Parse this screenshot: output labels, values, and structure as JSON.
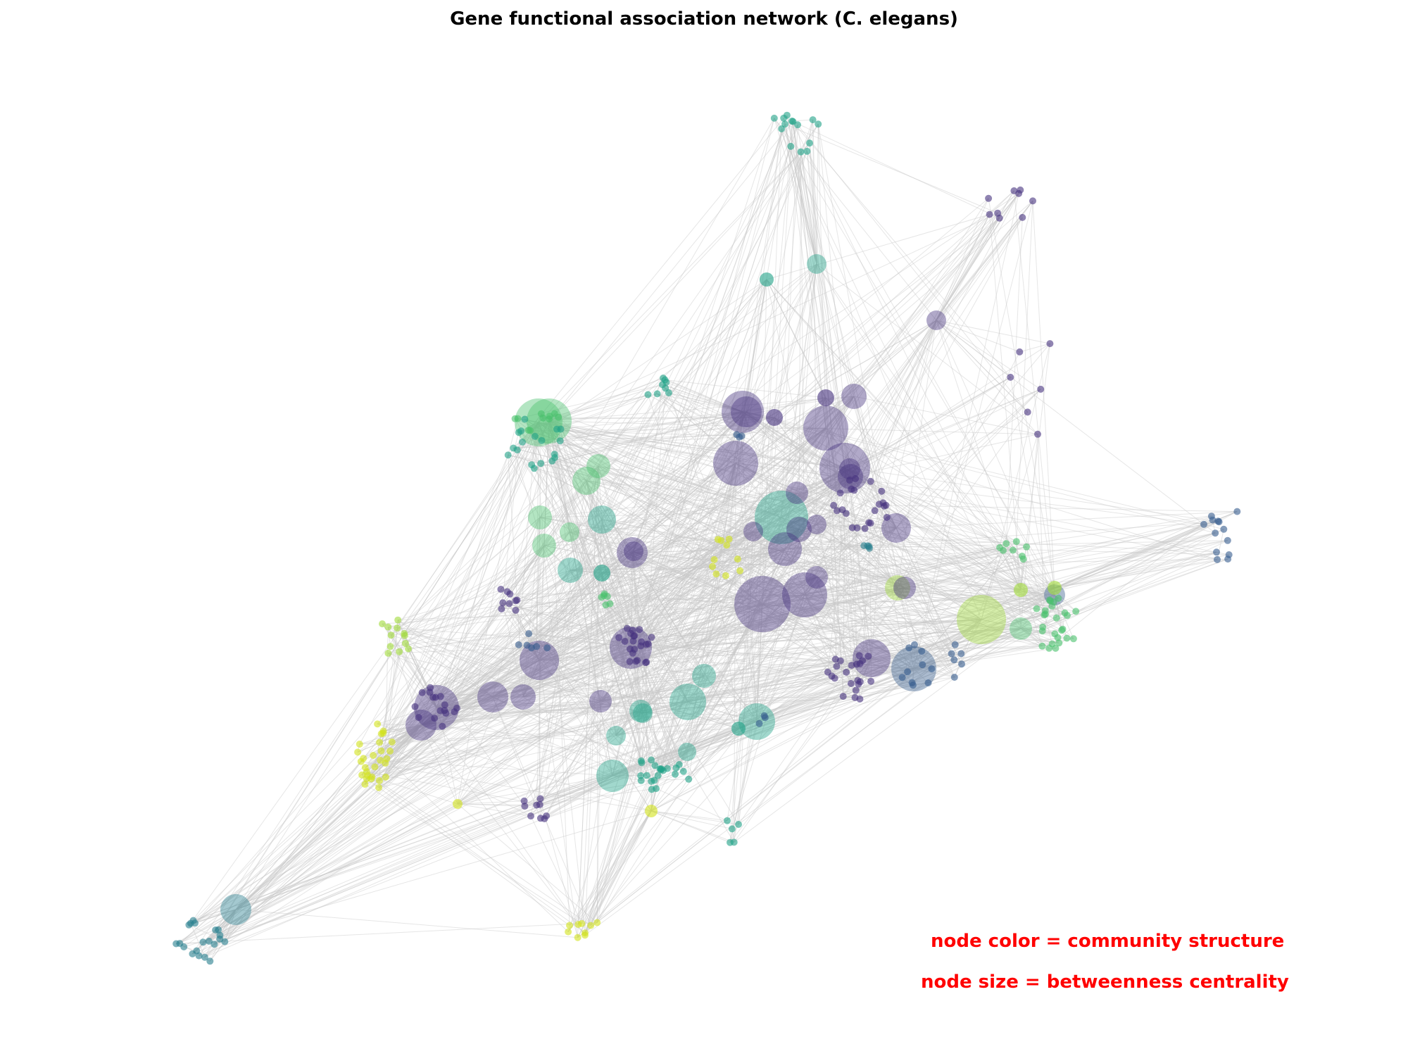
{
  "title": "Gene functional association network (C. elegans)",
  "legend": {
    "color": "node color = community structure",
    "size": "node size = betweenness centrality"
  },
  "style": {
    "edge_color": "#c8c8c8",
    "community_colors": [
      "#46327e",
      "#365c8d",
      "#277f8e",
      "#1fa187",
      "#4ac16d",
      "#a0da39",
      "#d2e21b"
    ]
  }
}
